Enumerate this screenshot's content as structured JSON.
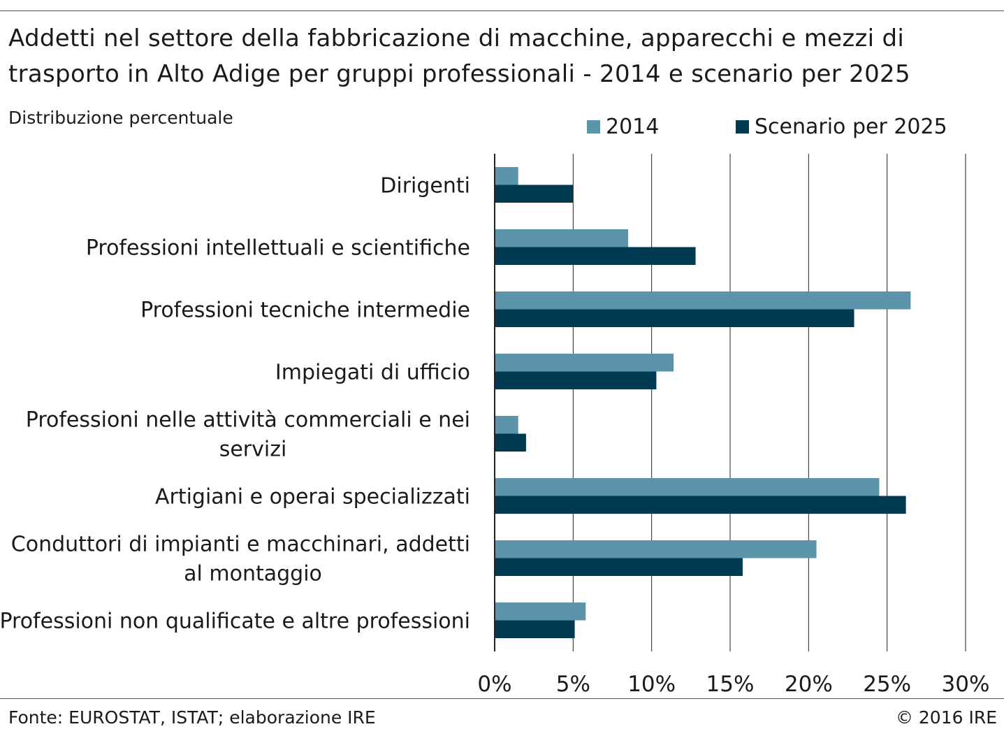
{
  "header": {
    "title": "Addetti nel settore della fabbricazione di macchine, apparecchi e mezzi di trasporto in Alto Adige per gruppi professionali - 2014 e scenario per 2025",
    "subtitle": "Distribuzione percentuale"
  },
  "footer": {
    "source": "Fonte: EUROSTAT, ISTAT; elaborazione IRE",
    "copyright": "© 2016 IRE"
  },
  "chart_data": {
    "type": "bar",
    "orientation": "horizontal",
    "title": "Addetti nel settore della fabbricazione di macchine, apparecchi e mezzi di trasporto in Alto Adige per gruppi professionali - 2014 e scenario per 2025",
    "subtitle": "Distribuzione percentuale",
    "categories": [
      "Dirigenti",
      "Professioni intellettuali e scientifiche",
      "Professioni tecniche intermedie",
      "Impiegati di ufficio",
      "Professioni nelle attività commerciali e nei servizi",
      "Artigiani e operai specializzati",
      "Conduttori di impianti e macchinari, addetti al montaggio",
      "Professioni non qualificate e altre professioni"
    ],
    "category_lines": [
      [
        "Dirigenti"
      ],
      [
        "Professioni intellettuali e scientifiche"
      ],
      [
        "Professioni tecniche intermedie"
      ],
      [
        "Impiegati di ufficio"
      ],
      [
        "Professioni nelle attività commerciali e nei",
        "servizi"
      ],
      [
        "Artigiani e operai specializzati"
      ],
      [
        "Conduttori di impianti e macchinari, addetti",
        "al montaggio"
      ],
      [
        "Professioni non qualificate e altre professioni"
      ]
    ],
    "series": [
      {
        "name": "2014",
        "color": "#5b93aa",
        "values": [
          1.5,
          8.5,
          26.5,
          11.4,
          1.5,
          24.5,
          20.5,
          5.8
        ]
      },
      {
        "name": "Scenario per 2025",
        "color": "#003a52",
        "values": [
          5.0,
          12.8,
          22.9,
          10.3,
          2.0,
          26.2,
          15.8,
          5.1
        ]
      }
    ],
    "xlim": [
      0,
      30
    ],
    "xticks": [
      0,
      5,
      10,
      15,
      20,
      25,
      30
    ],
    "tick_labels": [
      "0%",
      "5%",
      "10%",
      "15%",
      "20%",
      "25%",
      "30%"
    ],
    "grid": true,
    "legend_position": "top-right"
  }
}
